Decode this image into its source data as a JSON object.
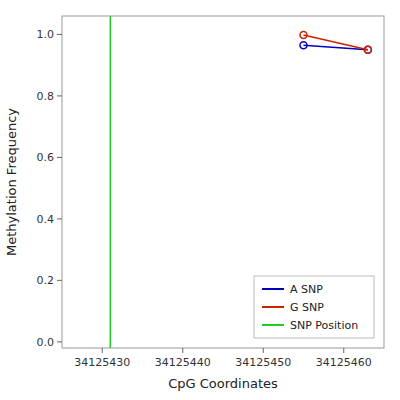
{
  "chart_data": {
    "type": "line",
    "xlabel": "CpG Coordinates",
    "ylabel": "Methylation Frequency",
    "x": [
      34125455,
      34125463
    ],
    "series": [
      {
        "name": "A SNP",
        "color": "#0000bb",
        "marker": "circle",
        "values": [
          0.965,
          0.95
        ]
      },
      {
        "name": "G SNP",
        "color": "#cc2200",
        "marker": "circle",
        "values": [
          0.998,
          0.95
        ]
      }
    ],
    "vline": {
      "name": "SNP Position",
      "x": 34125431,
      "color": "#22cc22"
    },
    "xlim": [
      34125425,
      34125465
    ],
    "ylim": [
      -0.02,
      1.06
    ],
    "xticks": [
      34125430,
      34125440,
      34125450,
      34125460
    ],
    "yticks": [
      {
        "value": 0.0,
        "label": "0.0"
      },
      0.2,
      0.4,
      0.6,
      0.8,
      {
        "value": 1.0,
        "label": "1.0"
      }
    ],
    "legend": "lower right"
  }
}
